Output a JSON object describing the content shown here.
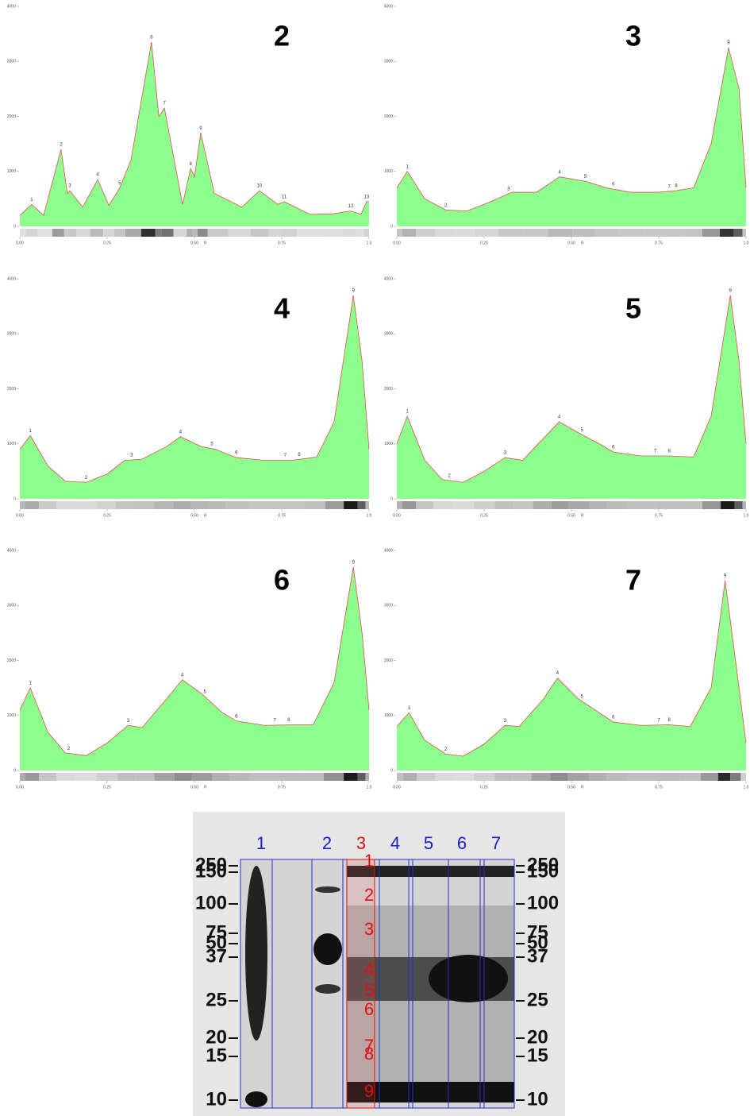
{
  "chart_data": [
    {
      "type": "area",
      "title": "2",
      "xlabel": "R",
      "color": "#8cff8c",
      "line_color": "#e05050",
      "x": [
        0,
        0.034,
        0.068,
        0.118,
        0.136,
        0.143,
        0.18,
        0.223,
        0.255,
        0.286,
        0.318,
        0.377,
        0.398,
        0.414,
        0.466,
        0.489,
        0.5,
        0.518,
        0.557,
        0.636,
        0.686,
        0.739,
        0.757,
        0.83,
        0.898,
        0.948,
        0.977,
        0.993,
        1.0
      ],
      "values": [
        200,
        400,
        200,
        1400,
        600,
        650,
        350,
        850,
        380,
        700,
        1200,
        3350,
        2000,
        2150,
        400,
        1050,
        900,
        1700,
        600,
        350,
        650,
        400,
        450,
        220,
        230,
        280,
        220,
        450,
        450
      ],
      "peaks": {
        "labels": [
          "1",
          "2",
          "3",
          "4",
          "5",
          "6",
          "7",
          "8",
          "9",
          "10",
          "11",
          "12",
          "13"
        ],
        "x": [
          0.034,
          0.118,
          0.143,
          0.223,
          0.286,
          0.377,
          0.414,
          0.489,
          0.518,
          0.686,
          0.757,
          0.948,
          0.993
        ]
      },
      "xlim": [
        0,
        1
      ],
      "ylim": [
        0,
        4000
      ],
      "yticks": [
        0,
        1000,
        2000,
        3000,
        4000
      ],
      "xticks": [
        {
          "value": 0,
          "label": "0.00"
        },
        {
          "value": 0.25,
          "label": "0.25"
        },
        {
          "value": 0.5,
          "label": "0.50"
        },
        {
          "value": 0.75,
          "label": "0.75"
        },
        {
          "value": 1,
          "label": "1.0"
        }
      ]
    },
    {
      "type": "area",
      "title": "3",
      "xlabel": "R",
      "color": "#8cff8c",
      "line_color": "#e05050",
      "x": [
        0,
        0.03,
        0.08,
        0.14,
        0.2,
        0.25,
        0.33,
        0.4,
        0.466,
        0.54,
        0.6,
        0.67,
        0.75,
        0.8,
        0.85,
        0.9,
        0.95,
        0.98,
        1.0
      ],
      "values": [
        700,
        1000,
        500,
        300,
        280,
        400,
        620,
        620,
        900,
        820,
        700,
        620,
        620,
        650,
        700,
        1500,
        3250,
        2500,
        700
      ],
      "peaks": {
        "labels": [
          "1",
          "2",
          "3",
          "4",
          "5",
          "6",
          "7",
          "8",
          "9"
        ],
        "x": [
          0.03,
          0.14,
          0.32,
          0.466,
          0.54,
          0.62,
          0.78,
          0.8,
          0.95
        ]
      },
      "xlim": [
        0,
        1
      ],
      "ylim": [
        0,
        4000
      ],
      "yticks": [
        0,
        1000,
        2000,
        3000,
        4000
      ],
      "xticks": [
        {
          "value": 0,
          "label": "0.00"
        },
        {
          "value": 0.25,
          "label": "0.25"
        },
        {
          "value": 0.5,
          "label": "0.50"
        },
        {
          "value": 0.75,
          "label": "0.75"
        },
        {
          "value": 1,
          "label": "1.0"
        }
      ]
    },
    {
      "type": "area",
      "title": "4",
      "xlabel": "R",
      "color": "#8cff8c",
      "line_color": "#e05050",
      "x": [
        0,
        0.03,
        0.08,
        0.13,
        0.19,
        0.25,
        0.3,
        0.35,
        0.42,
        0.46,
        0.52,
        0.56,
        0.62,
        0.7,
        0.78,
        0.85,
        0.9,
        0.955,
        0.98,
        1.0
      ],
      "values": [
        900,
        1150,
        600,
        320,
        300,
        450,
        700,
        720,
        950,
        1130,
        950,
        900,
        750,
        700,
        700,
        760,
        1400,
        3700,
        2500,
        900
      ],
      "peaks": {
        "labels": [
          "1",
          "2",
          "3",
          "4",
          "5",
          "6",
          "7",
          "8",
          "9"
        ],
        "x": [
          0.03,
          0.19,
          0.32,
          0.46,
          0.55,
          0.62,
          0.76,
          0.8,
          0.955
        ]
      },
      "xlim": [
        0,
        1
      ],
      "ylim": [
        0,
        4000
      ],
      "yticks": [
        0,
        1000,
        2000,
        3000,
        4000
      ],
      "xticks": [
        {
          "value": 0,
          "label": "0.00"
        },
        {
          "value": 0.25,
          "label": "0.25"
        },
        {
          "value": 0.5,
          "label": "0.50"
        },
        {
          "value": 0.75,
          "label": "0.75"
        },
        {
          "value": 1,
          "label": "1.0"
        }
      ]
    },
    {
      "type": "area",
      "title": "5",
      "xlabel": "R",
      "color": "#8cff8c",
      "line_color": "#e05050",
      "x": [
        0,
        0.03,
        0.08,
        0.13,
        0.19,
        0.25,
        0.31,
        0.36,
        0.42,
        0.465,
        0.52,
        0.58,
        0.62,
        0.7,
        0.78,
        0.85,
        0.9,
        0.955,
        0.98,
        1.0
      ],
      "values": [
        1000,
        1500,
        700,
        350,
        300,
        500,
        750,
        700,
        1100,
        1400,
        1200,
        1000,
        850,
        780,
        780,
        760,
        1500,
        3700,
        2500,
        1000
      ],
      "peaks": {
        "labels": [
          "1",
          "2",
          "3",
          "4",
          "5",
          "6",
          "7",
          "8",
          "9"
        ],
        "x": [
          0.03,
          0.15,
          0.31,
          0.465,
          0.53,
          0.62,
          0.74,
          0.78,
          0.955
        ]
      },
      "xlim": [
        0,
        1
      ],
      "ylim": [
        0,
        4000
      ],
      "yticks": [
        0,
        1000,
        2000,
        3000,
        4000
      ],
      "xticks": [
        {
          "value": 0,
          "label": "0.00"
        },
        {
          "value": 0.25,
          "label": "0.25"
        },
        {
          "value": 0.5,
          "label": "0.50"
        },
        {
          "value": 0.75,
          "label": "0.75"
        },
        {
          "value": 1,
          "label": "1.0"
        }
      ]
    },
    {
      "type": "area",
      "title": "6",
      "xlabel": "R",
      "color": "#8cff8c",
      "line_color": "#e05050",
      "x": [
        0,
        0.03,
        0.08,
        0.13,
        0.19,
        0.25,
        0.31,
        0.35,
        0.42,
        0.465,
        0.52,
        0.58,
        0.62,
        0.7,
        0.78,
        0.84,
        0.9,
        0.955,
        0.98,
        1.0
      ],
      "values": [
        1100,
        1500,
        700,
        320,
        270,
        500,
        820,
        780,
        1300,
        1650,
        1400,
        1050,
        900,
        820,
        830,
        830,
        1600,
        3700,
        2500,
        1100
      ],
      "peaks": {
        "labels": [
          "1",
          "2",
          "3",
          "4",
          "5",
          "6",
          "7",
          "8",
          "9"
        ],
        "x": [
          0.03,
          0.14,
          0.31,
          0.465,
          0.53,
          0.62,
          0.73,
          0.77,
          0.955
        ]
      },
      "xlim": [
        0,
        1
      ],
      "ylim": [
        0,
        4000
      ],
      "yticks": [
        0,
        1000,
        2000,
        3000,
        4000
      ],
      "xticks": [
        {
          "value": 0,
          "label": "0.00"
        },
        {
          "value": 0.25,
          "label": "0.25"
        },
        {
          "value": 0.5,
          "label": "0.50"
        },
        {
          "value": 0.75,
          "label": "0.75"
        },
        {
          "value": 1,
          "label": "1.0"
        }
      ]
    },
    {
      "type": "area",
      "title": "7",
      "xlabel": "R",
      "color": "#8cff8c",
      "line_color": "#e05050",
      "x": [
        0,
        0.035,
        0.08,
        0.14,
        0.19,
        0.25,
        0.31,
        0.35,
        0.42,
        0.46,
        0.52,
        0.58,
        0.62,
        0.7,
        0.78,
        0.84,
        0.9,
        0.94,
        0.97,
        1.0
      ],
      "values": [
        800,
        1050,
        550,
        300,
        260,
        480,
        820,
        800,
        1300,
        1680,
        1300,
        1050,
        880,
        820,
        830,
        800,
        1500,
        3450,
        2000,
        500
      ],
      "peaks": {
        "labels": [
          "1",
          "2",
          "3",
          "4",
          "5",
          "6",
          "7",
          "8",
          "9"
        ],
        "x": [
          0.035,
          0.14,
          0.31,
          0.46,
          0.53,
          0.62,
          0.75,
          0.78,
          0.94
        ]
      },
      "xlim": [
        0,
        1
      ],
      "ylim": [
        0,
        4000
      ],
      "yticks": [
        0,
        1000,
        2000,
        3000,
        4000
      ],
      "xticks": [
        {
          "value": 0,
          "label": "0.00"
        },
        {
          "value": 0.25,
          "label": "0.25"
        },
        {
          "value": 0.5,
          "label": "0.50"
        },
        {
          "value": 0.75,
          "label": "0.75"
        },
        {
          "value": 1,
          "label": "1.0"
        }
      ]
    }
  ],
  "gel": {
    "lanes": [
      "1",
      "2",
      "3",
      "4",
      "5",
      "6",
      "7"
    ],
    "lane_colors": [
      "#1a1ad0",
      "#1a1ad0",
      "#e01010",
      "#1a1ad0",
      "#1a1ad0",
      "#1a1ad0",
      "#1a1ad0"
    ],
    "markers_left": [
      "250",
      "150",
      "100",
      "75",
      "50",
      "37",
      "25",
      "20",
      "15",
      "10"
    ],
    "markers_right": [
      "250",
      "150",
      "100",
      "75",
      "50",
      "37",
      "25",
      "20",
      "15",
      "10"
    ],
    "band_labels": [
      "1",
      "2",
      "3",
      "4",
      "5",
      "6",
      "7",
      "8",
      "9"
    ]
  }
}
